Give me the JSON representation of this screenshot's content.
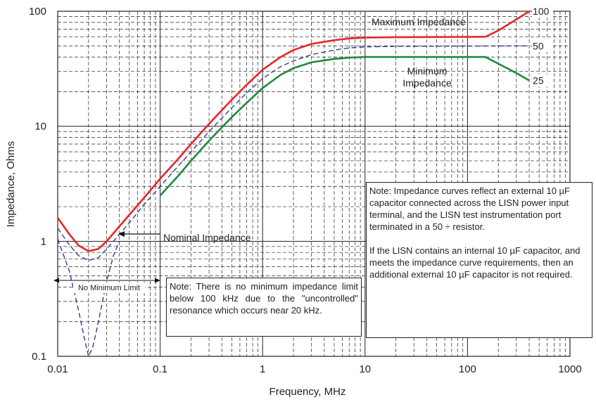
{
  "chart_data": {
    "type": "line",
    "title": "",
    "xlabel": "Frequency, MHz",
    "ylabel": "Impedance, Ohms",
    "xscale": "log",
    "yscale": "log",
    "xlim": [
      0.01,
      1000
    ],
    "ylim": [
      0.1,
      100
    ],
    "grid": true,
    "x_tick_labels": [
      "0.01",
      "0.1",
      "1",
      "10",
      "100",
      "1000"
    ],
    "y_tick_labels": [
      "0.1",
      "1",
      "10",
      "100"
    ],
    "series": [
      {
        "name": "Maximum Impedance",
        "color": "#e8262a",
        "style": "solid",
        "end_label": "100",
        "x": [
          0.01,
          0.013,
          0.016,
          0.02,
          0.025,
          0.03,
          0.04,
          0.05,
          0.07,
          0.1,
          0.15,
          0.2,
          0.3,
          0.5,
          0.7,
          1,
          1.5,
          2,
          3,
          5,
          7,
          10,
          20,
          50,
          100,
          150,
          200,
          300,
          400
        ],
        "y": [
          1.6,
          1.15,
          0.92,
          0.82,
          0.86,
          1.0,
          1.35,
          1.7,
          2.4,
          3.5,
          5.2,
          7,
          10.5,
          17,
          23,
          31,
          40,
          46,
          52,
          56,
          58,
          59,
          59.5,
          59.7,
          59.8,
          60,
          68,
          85,
          100
        ]
      },
      {
        "name": "Nominal Impedance",
        "color": "#3a3a8c",
        "style": "dashed",
        "end_label": "50",
        "x": [
          0.01,
          0.013,
          0.016,
          0.02,
          0.025,
          0.03,
          0.035,
          0.04,
          0.05,
          0.07,
          0.1,
          0.15,
          0.2,
          0.3,
          0.5,
          0.7,
          1,
          1.5,
          2,
          3,
          5,
          7,
          10,
          20,
          50,
          100,
          200,
          400
        ],
        "y": [
          1.3,
          0.93,
          0.75,
          0.68,
          0.72,
          0.86,
          1.0,
          1.15,
          1.45,
          2.1,
          3.0,
          4.5,
          6.0,
          9.0,
          14.5,
          19.5,
          26,
          33,
          37,
          42,
          46,
          48,
          49,
          49.5,
          49.7,
          49.8,
          49.9,
          50
        ]
      },
      {
        "name": "",
        "color": "#3a3a8c",
        "style": "dashed",
        "x": [
          0.01,
          0.013,
          0.016,
          0.018,
          0.02,
          0.022,
          0.025,
          0.03,
          0.035,
          0.04
        ],
        "y": [
          1.05,
          0.55,
          0.25,
          0.15,
          0.1,
          0.12,
          0.2,
          0.45,
          0.75,
          1.0
        ]
      },
      {
        "name": "Minimum Impedance",
        "color": "#1e8a3a",
        "style": "solid",
        "end_label": "25",
        "x": [
          0.1,
          0.15,
          0.2,
          0.3,
          0.5,
          0.7,
          1,
          1.5,
          2,
          3,
          5,
          7,
          10,
          20,
          50,
          100,
          150,
          200,
          300,
          400
        ],
        "y": [
          2.5,
          3.7,
          5.0,
          7.5,
          12,
          16,
          21.5,
          28,
          32,
          36,
          38.5,
          39.5,
          40,
          40,
          40,
          40,
          40,
          35,
          29,
          25
        ]
      }
    ],
    "annotations": {
      "maximum_impedance": "Maximum Impedance",
      "minimum_impedance_line1": "Minimum",
      "minimum_impedance_line2": "Impedance",
      "nominal_impedance": "Nominal Impedance",
      "no_minimum_limit": "No Minimum Limit",
      "note_left": "Note: There is no minimum impedance limit below 100 kHz due to the \"uncontrolled\" resonance which occurs near 20 kHz.",
      "note_right_p1": "Note: Impedance curves reflect an external 10 µF capacitor connected across the LISN power input terminal, and the LISN test instrumentation port terminated in a 50 ÷ resistor.",
      "note_right_p2": "If the LISN contains an internal 10 µF capacitor, and meets the impedance curve requirements, then an additional external 10 µF capacitor is not required."
    }
  }
}
